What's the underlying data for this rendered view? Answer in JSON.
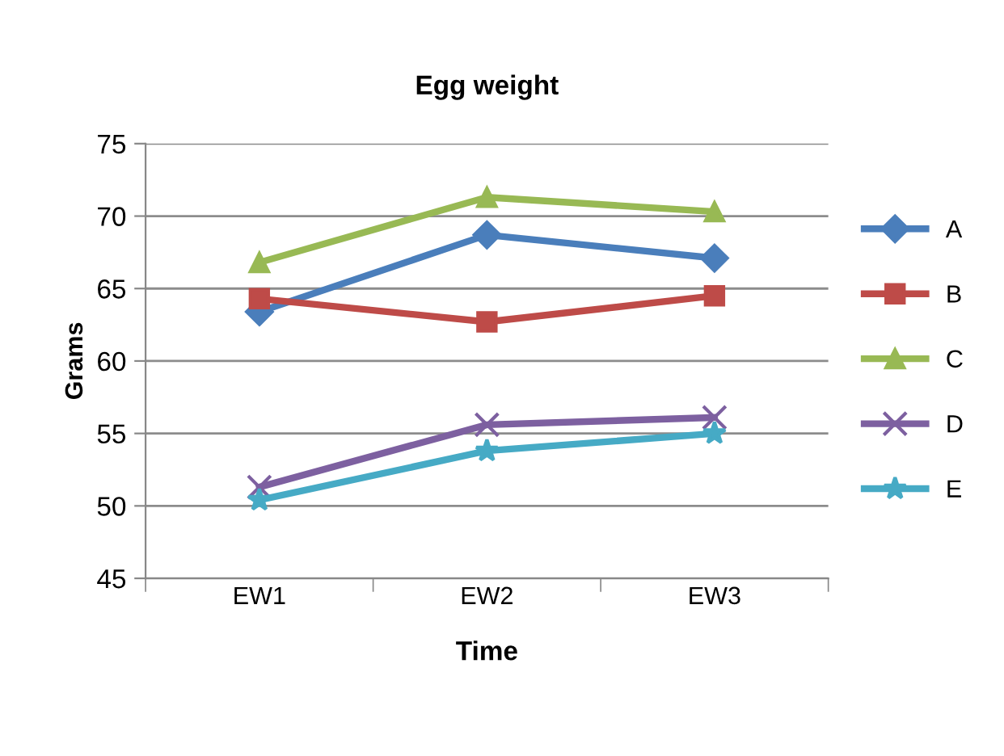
{
  "chart_data": {
    "type": "line",
    "title": "Egg weight",
    "xlabel": "Time",
    "ylabel": "Grams",
    "categories": [
      "EW1",
      "EW2",
      "EW3"
    ],
    "series": [
      {
        "name": "A",
        "color": "#4a7ebb",
        "marker": "diamond",
        "values": [
          63.4,
          68.7,
          67.1
        ]
      },
      {
        "name": "B",
        "color": "#be4b48",
        "marker": "square",
        "values": [
          64.3,
          62.7,
          64.5
        ]
      },
      {
        "name": "C",
        "color": "#98b954",
        "marker": "triangle",
        "values": [
          66.8,
          71.3,
          70.3
        ]
      },
      {
        "name": "D",
        "color": "#7d60a0",
        "marker": "cross",
        "values": [
          51.3,
          55.6,
          56.1
        ]
      },
      {
        "name": "E",
        "color": "#46aac5",
        "marker": "star",
        "values": [
          50.4,
          53.8,
          55.0
        ]
      }
    ],
    "ylim": [
      45,
      75
    ],
    "yticks": [
      45,
      50,
      55,
      60,
      65,
      70,
      75
    ],
    "grid": "y",
    "legend": "right",
    "line_style": "solid"
  }
}
